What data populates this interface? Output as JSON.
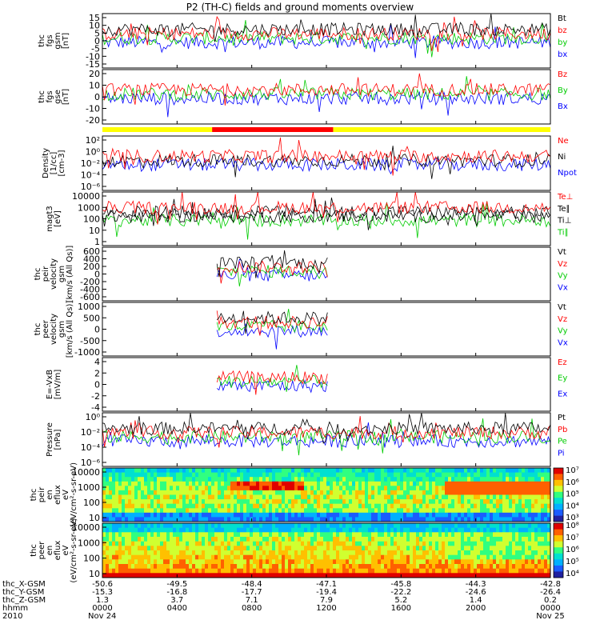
{
  "title": "P2 (TH-C) fields and ground moments overview",
  "chart_data": [
    {
      "type": "line",
      "ylabel": [
        "thc",
        "fgs",
        "gsm",
        "[nT]"
      ],
      "yticks": [
        "15",
        "10",
        "5",
        "0",
        "-5",
        "-10",
        "-15"
      ],
      "ylim": [
        -18,
        16
      ],
      "series": [
        {
          "name": "Bt",
          "color": "#000000"
        },
        {
          "name": "bz",
          "color": "#ff0000"
        },
        {
          "name": "by",
          "color": "#00cc00"
        },
        {
          "name": "bx",
          "color": "#0000ff"
        }
      ]
    },
    {
      "type": "line",
      "ylabel": [
        "thc",
        "fgs",
        "gse",
        "[nT]"
      ],
      "yticks": [
        "20",
        "10",
        "0",
        "-10",
        "-20"
      ],
      "ylim": [
        -25,
        22
      ],
      "series": [
        {
          "name": "Bz",
          "color": "#ff0000"
        },
        {
          "name": "By",
          "color": "#00cc00"
        },
        {
          "name": "Bx",
          "color": "#0000ff"
        }
      ]
    },
    {
      "type": "line",
      "ylabel": [
        "Density",
        "[1/cc]",
        "[cm-3]"
      ],
      "yticks": [
        "10²",
        "10⁰",
        "10⁻²",
        "10⁻⁴",
        "10⁻⁶"
      ],
      "ylim": [
        -7,
        2.6
      ],
      "log": true,
      "series": [
        {
          "name": "Ne",
          "color": "#ff0000"
        },
        {
          "name": "Ni",
          "color": "#000000"
        },
        {
          "name": "Npot",
          "color": "#0000ff"
        }
      ]
    },
    {
      "type": "line",
      "ylabel": [
        "magt3",
        "[eV]"
      ],
      "yticks": [
        "10000",
        "1000",
        "100",
        "10",
        "1"
      ],
      "ylim": [
        0,
        4.2
      ],
      "log": true,
      "series": [
        {
          "name": "Te⊥",
          "color": "#ff0000"
        },
        {
          "name": "Te∥",
          "color": "#000000"
        },
        {
          "name": "Ti⊥",
          "color": "#000000"
        },
        {
          "name": "Ti∥",
          "color": "#00cc00"
        }
      ]
    },
    {
      "type": "line",
      "ylabel": [
        "thc",
        "peir",
        "velocity",
        "gsm",
        "[km/s (All Qs)]"
      ],
      "yticks": [
        "600",
        "400",
        "200",
        "0",
        "-200",
        "-400",
        "-600"
      ],
      "ylim": [
        -650,
        650
      ],
      "series": [
        {
          "name": "Vt",
          "color": "#000000"
        },
        {
          "name": "Vz",
          "color": "#ff0000"
        },
        {
          "name": "Vy",
          "color": "#00cc00"
        },
        {
          "name": "Vx",
          "color": "#0000ff"
        }
      ]
    },
    {
      "type": "line",
      "ylabel": [
        "thc",
        "peer",
        "velocity",
        "gsm",
        "[km/s (All Qs)]"
      ],
      "yticks": [
        "1000",
        "500",
        "0",
        "-500",
        "-1000"
      ],
      "ylim": [
        -1100,
        1100
      ],
      "series": [
        {
          "name": "Vt",
          "color": "#000000"
        },
        {
          "name": "Vz",
          "color": "#ff0000"
        },
        {
          "name": "Vy",
          "color": "#00cc00"
        },
        {
          "name": "Vx",
          "color": "#0000ff"
        }
      ]
    },
    {
      "type": "line",
      "ylabel": [
        "E=-VxB",
        "[mV/m]"
      ],
      "yticks": [
        "4",
        "2",
        "0",
        "-2",
        "-4"
      ],
      "ylim": [
        -5,
        4.5
      ],
      "series": [
        {
          "name": "Ez",
          "color": "#ff0000"
        },
        {
          "name": "Ey",
          "color": "#00cc00"
        },
        {
          "name": "Ex",
          "color": "#0000ff"
        }
      ]
    },
    {
      "type": "line",
      "ylabel": [
        "Pressure",
        "[nPa]"
      ],
      "yticks": [
        "10⁰",
        "10⁻²",
        "10⁻⁴",
        "10⁻⁶"
      ],
      "ylim": [
        -7,
        0.3
      ],
      "log": true,
      "series": [
        {
          "name": "Pt",
          "color": "#000000"
        },
        {
          "name": "Pb",
          "color": "#ff0000"
        },
        {
          "name": "Pe",
          "color": "#00cc00"
        },
        {
          "name": "Pi",
          "color": "#0000ff"
        }
      ]
    },
    {
      "type": "heatmap",
      "ylabel": [
        "thc",
        "peir",
        "en",
        "eflux",
        "eV",
        "(eV/cm²-s-sr-eV)"
      ],
      "yticks": [
        "10000",
        "1000",
        "100",
        "10"
      ],
      "colorbar": [
        "10⁷",
        "10⁶",
        "10⁵",
        "10⁴",
        "10³"
      ]
    },
    {
      "type": "heatmap",
      "ylabel": [
        "thc",
        "peer",
        "en",
        "eflux",
        "eV",
        "(eV/cm²-s-sr-eV)"
      ],
      "yticks": [
        "10000",
        "1000",
        "100",
        "10"
      ],
      "colorbar": [
        "10⁸",
        "10⁷",
        "10⁶",
        "10⁵",
        "10⁴"
      ]
    }
  ],
  "time_axis": {
    "rows": [
      {
        "label": "thc_X-GSM",
        "values": [
          "-50.6",
          "-49.5",
          "-48.4",
          "-47.1",
          "-45.8",
          "-44.3",
          "-42.8"
        ]
      },
      {
        "label": "thc_Y-GSM",
        "values": [
          "-15.3",
          "-16.8",
          "-17.7",
          "-19.4",
          "-22.2",
          "-24.6",
          "-26.4"
        ]
      },
      {
        "label": "thc_Z-GSM",
        "values": [
          "1.3",
          "3.7",
          "7.1",
          "7.9",
          "5.2",
          "1.4",
          "0.2"
        ]
      },
      {
        "label": "hhmm",
        "values": [
          "0000",
          "0400",
          "0800",
          "1200",
          "1600",
          "2000",
          "0000"
        ]
      },
      {
        "label": "2010",
        "values": [
          "Nov 24",
          "",
          "",
          "",
          "",
          "",
          "Nov 25"
        ]
      }
    ]
  }
}
